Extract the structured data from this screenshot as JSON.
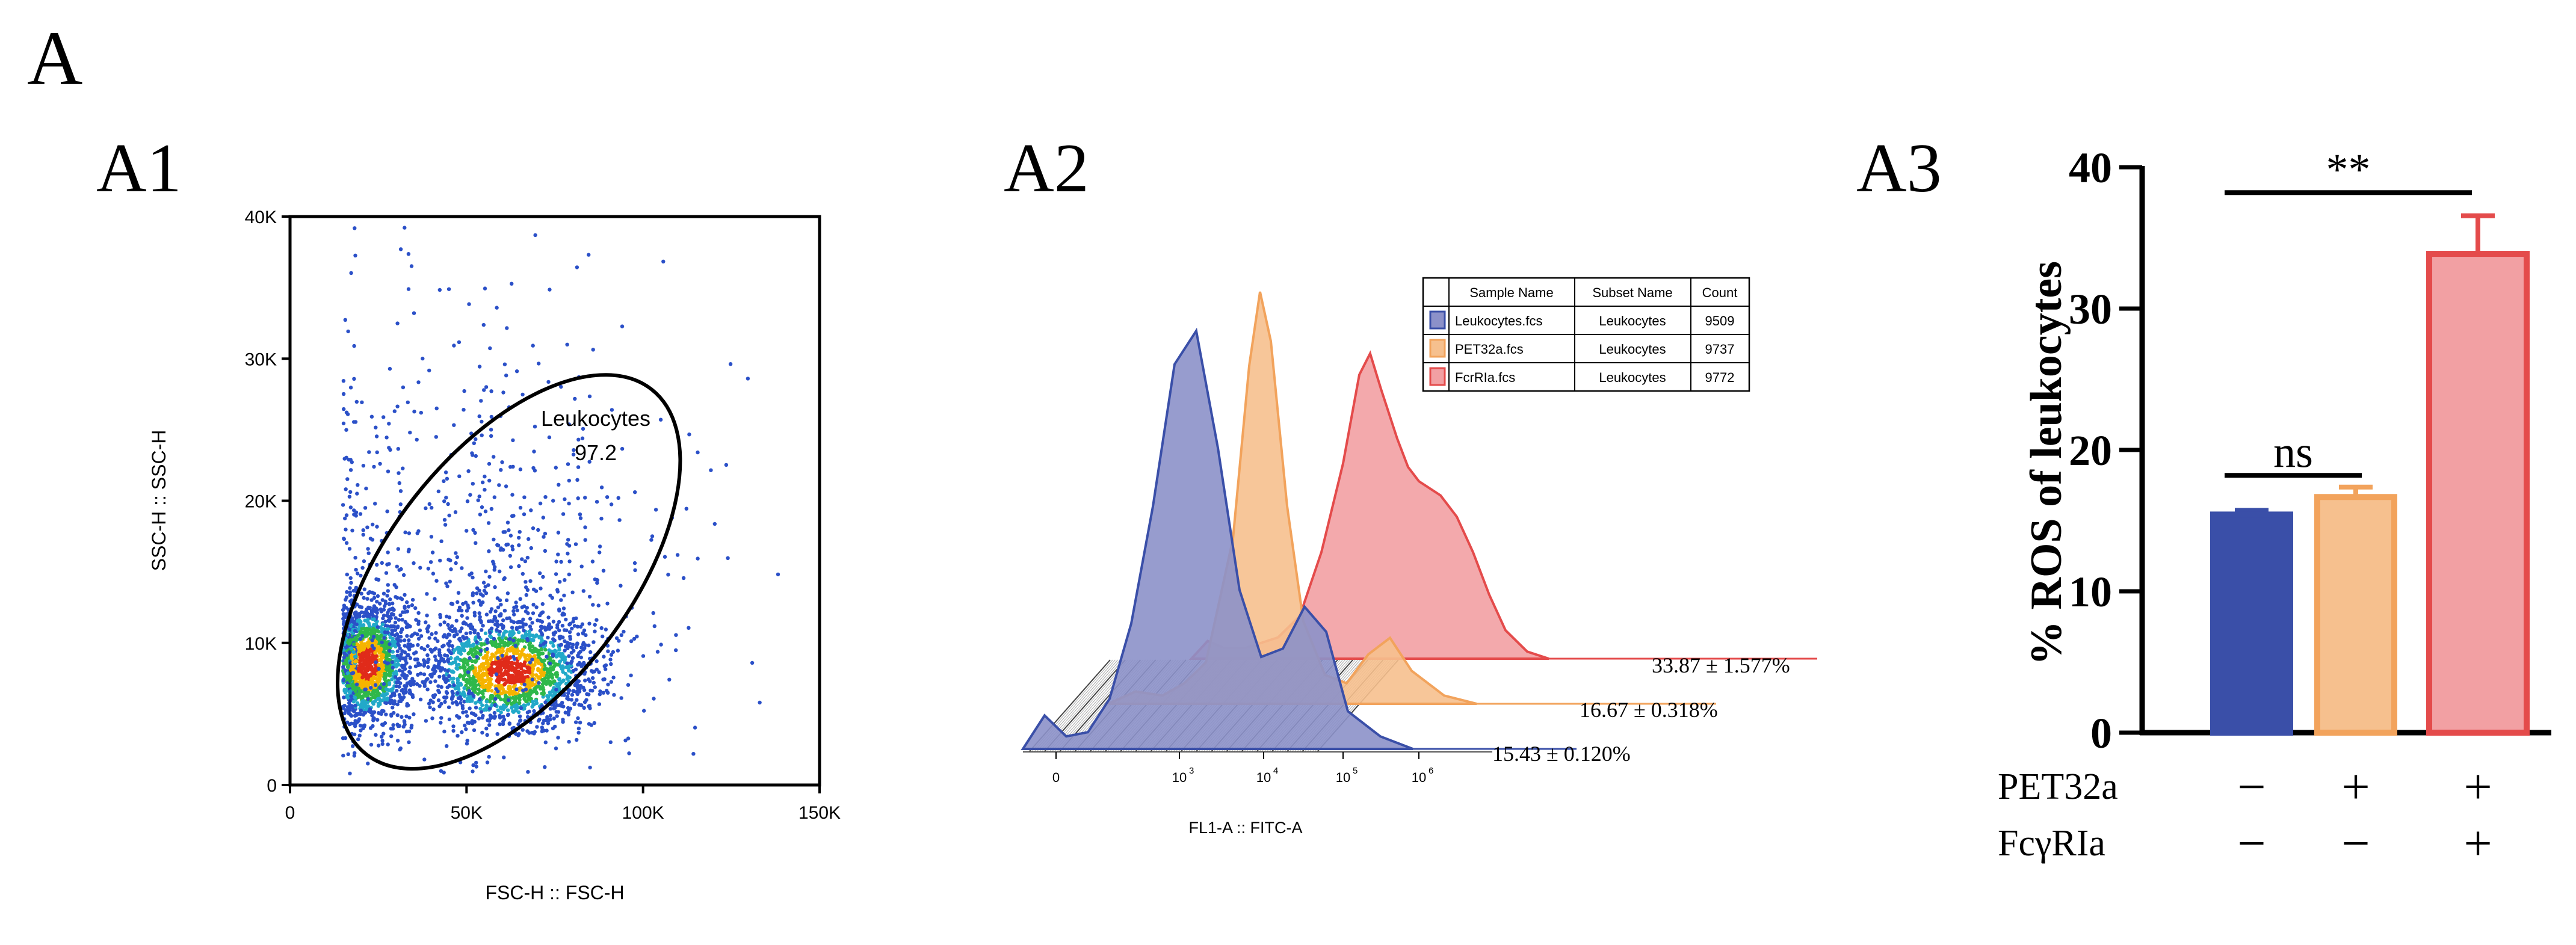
{
  "figure": {
    "panel_label": "A",
    "panels": {
      "a1": "A1",
      "a2": "A2",
      "a3": "A3"
    }
  },
  "colors": {
    "blue": "#3a4fa8",
    "orange": "#f2a35c",
    "red": "#e44b4b",
    "blue_fill": "#8c91c9",
    "orange_fill": "#f6c08e",
    "red_fill": "#f2a0a3"
  },
  "chart_data": [
    {
      "id": "A1",
      "type": "scatter",
      "title": "",
      "xlabel": "FSC-H :: FSC-H",
      "ylabel": "SSC-H :: SSC-H",
      "xlim": [
        0,
        150000
      ],
      "ylim": [
        0,
        40000
      ],
      "xticks": [
        0,
        50000,
        100000,
        150000
      ],
      "xtick_labels": [
        "0",
        "50K",
        "100K",
        "150K"
      ],
      "yticks": [
        0,
        10000,
        20000,
        30000,
        40000
      ],
      "ytick_labels": [
        "0",
        "10K",
        "20K",
        "30K",
        "40K"
      ],
      "gate": {
        "name": "Leukocytes",
        "percent": "97.2",
        "center": [
          62000,
          15000
        ],
        "semi_axes": [
          60000,
          15500
        ],
        "angle_deg": 52
      },
      "clusters": [
        {
          "center": [
            22000,
            8500
          ],
          "spread": [
            6000,
            2200
          ],
          "count": 1500
        },
        {
          "center": [
            62000,
            8000
          ],
          "spread": [
            12000,
            2000
          ],
          "count": 1700
        },
        {
          "center": [
            55000,
            14000
          ],
          "spread": [
            25000,
            6000
          ],
          "count": 500
        },
        {
          "center": [
            50000,
            22000
          ],
          "spread": [
            35000,
            9000
          ],
          "count": 200
        }
      ]
    },
    {
      "id": "A2",
      "type": "area",
      "title": "",
      "xlabel": "FL1-A :: FITC-A",
      "xtick_labels": [
        "0",
        "10",
        "10",
        "10",
        "10"
      ],
      "xtick_exponents": [
        "",
        "3",
        "4",
        "5",
        "6"
      ],
      "legend": {
        "headers": [
          "Sample Name",
          "Subset Name",
          "Count"
        ],
        "rows": [
          {
            "sample": "Leukocytes.fcs",
            "subset": "Leukocytes",
            "count": "9509"
          },
          {
            "sample": "PET32a.fcs",
            "subset": "Leukocytes",
            "count": "9737"
          },
          {
            "sample": "FcrRIa.fcs",
            "subset": "Leukocytes",
            "count": "9772"
          }
        ]
      },
      "series": [
        {
          "name": "Leukocytes.fcs",
          "annotation": "15.43 ± 0.120%",
          "histogram": [
            [
              0,
              0
            ],
            [
              0.4,
              8
            ],
            [
              0.8,
              3
            ],
            [
              1.2,
              4
            ],
            [
              1.6,
              12
            ],
            [
              2.0,
              30
            ],
            [
              2.4,
              58
            ],
            [
              2.8,
              92
            ],
            [
              3.2,
              100
            ],
            [
              3.6,
              72
            ],
            [
              4.0,
              38
            ],
            [
              4.4,
              22
            ],
            [
              4.8,
              24
            ],
            [
              5.2,
              34
            ],
            [
              5.6,
              28
            ],
            [
              6.0,
              9
            ],
            [
              6.6,
              3
            ],
            [
              7.2,
              0
            ]
          ]
        },
        {
          "name": "PET32a.fcs",
          "annotation": "16.67 ± 0.318%",
          "histogram": [
            [
              0,
              0
            ],
            [
              0.5,
              3
            ],
            [
              1.0,
              2
            ],
            [
              1.4,
              5
            ],
            [
              1.8,
              10
            ],
            [
              2.3,
              40
            ],
            [
              2.6,
              82
            ],
            [
              2.8,
              100
            ],
            [
              3.0,
              88
            ],
            [
              3.3,
              48
            ],
            [
              3.6,
              20
            ],
            [
              4.0,
              7
            ],
            [
              4.4,
              5
            ],
            [
              4.8,
              12
            ],
            [
              5.2,
              16
            ],
            [
              5.6,
              8
            ],
            [
              6.2,
              2
            ],
            [
              6.8,
              0
            ]
          ]
        },
        {
          "name": "FcrRIa.fcs",
          "annotation": "33.87 ± 1.577%",
          "histogram": [
            [
              0,
              0
            ],
            [
              0.3,
              5
            ],
            [
              0.6,
              3
            ],
            [
              1.0,
              3
            ],
            [
              1.6,
              6
            ],
            [
              2.0,
              12
            ],
            [
              2.4,
              30
            ],
            [
              2.8,
              55
            ],
            [
              3.1,
              80
            ],
            [
              3.3,
              86
            ],
            [
              3.5,
              76
            ],
            [
              3.8,
              62
            ],
            [
              4.0,
              54
            ],
            [
              4.2,
              50
            ],
            [
              4.4,
              48
            ],
            [
              4.6,
              46
            ],
            [
              4.9,
              40
            ],
            [
              5.2,
              30
            ],
            [
              5.5,
              18
            ],
            [
              5.8,
              8
            ],
            [
              6.2,
              2
            ],
            [
              6.6,
              0
            ]
          ]
        }
      ]
    },
    {
      "id": "A3",
      "type": "bar",
      "title": "",
      "xlabel": "",
      "ylabel": "% ROS of leukocytes",
      "ylim": [
        0,
        40
      ],
      "yticks": [
        0,
        10,
        20,
        30,
        40
      ],
      "ytick_labels": [
        "0",
        "10",
        "20",
        "30",
        "40"
      ],
      "categories": [
        "PET32a −/FcγRIa −",
        "PET32a +/FcγRIa −",
        "PET32a +/FcγRIa +"
      ],
      "values": [
        15.43,
        16.67,
        33.87
      ],
      "errors": [
        0.3,
        0.7,
        2.7
      ],
      "row_labels": [
        "PET32a",
        "FcγRIa"
      ],
      "row_values": [
        [
          "−",
          "+",
          "+"
        ],
        [
          "−",
          "−",
          "+"
        ]
      ],
      "significance": [
        {
          "from": 0,
          "to": 1,
          "label": "ns",
          "y": 18.2
        },
        {
          "from": 0,
          "to": 2,
          "label": "**",
          "y": 38.2
        }
      ]
    }
  ]
}
